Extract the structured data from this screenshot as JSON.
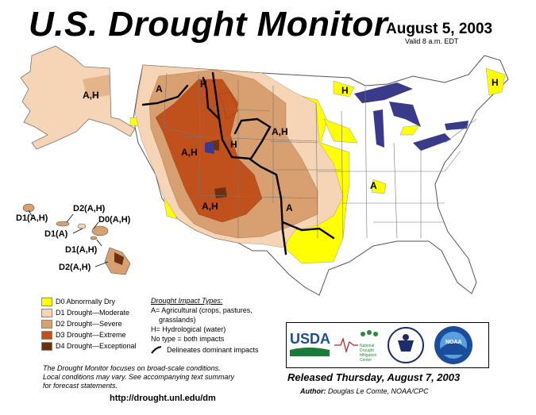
{
  "title": "U.S. Drought Monitor",
  "date": "August 5, 2003",
  "valid": "Valid 8 a.m. EDT",
  "map_labels": {
    "ak": "A,H",
    "wa": "A",
    "mt_h": "H",
    "id": "A,H",
    "wy_h": "H",
    "nd_sd": "A,H",
    "az_nm": "A,H",
    "tx_ok": "A",
    "mo": "A",
    "mn": "H",
    "me": "H",
    "hi1": "D2(A,H)",
    "hi2": "D1(A,H)",
    "hi3": "D0(A,H)",
    "hi4": "D1(A)",
    "hi5": "D1(A,H)",
    "hi6": "D2(A,H)"
  },
  "legend": {
    "items": [
      {
        "label": "D0 Abnormally Dry",
        "color": "#ffff00"
      },
      {
        "label": "D1 Drought—Moderate",
        "color": "#f5d5b5"
      },
      {
        "label": "D2 Drought—Severe",
        "color": "#d8a070"
      },
      {
        "label": "D3 Drought—Extreme",
        "color": "#c0501c"
      },
      {
        "label": "D4 Drought—Exceptional",
        "color": "#6b3010"
      }
    ]
  },
  "impact": {
    "heading": "Drought Impact Types:",
    "line1": "A= Agricultural (crops, pastures,",
    "line2": "grasslands)",
    "line3": "H= Hydrological (water)",
    "line4": "No type = both impacts",
    "line5": "Delineates dominant impacts"
  },
  "note": {
    "line1": "The Drought Monitor focuses on broad-scale conditions.",
    "line2": "Local conditions may vary. See accompanying text summary",
    "line3": "for forecast statements."
  },
  "url": "http://drought.unl.edu/dm",
  "logos": {
    "usda": "USDA",
    "ndmc1": "National",
    "ndmc2": "Drought",
    "ndmc3": "Mitigation",
    "ndmc4": "Center",
    "noaa": "NOAA"
  },
  "released": "Released Thursday, August 7, 2003",
  "author_label": "Author:",
  "author_name": "Douglas Le Comte, NOAA/CPC"
}
